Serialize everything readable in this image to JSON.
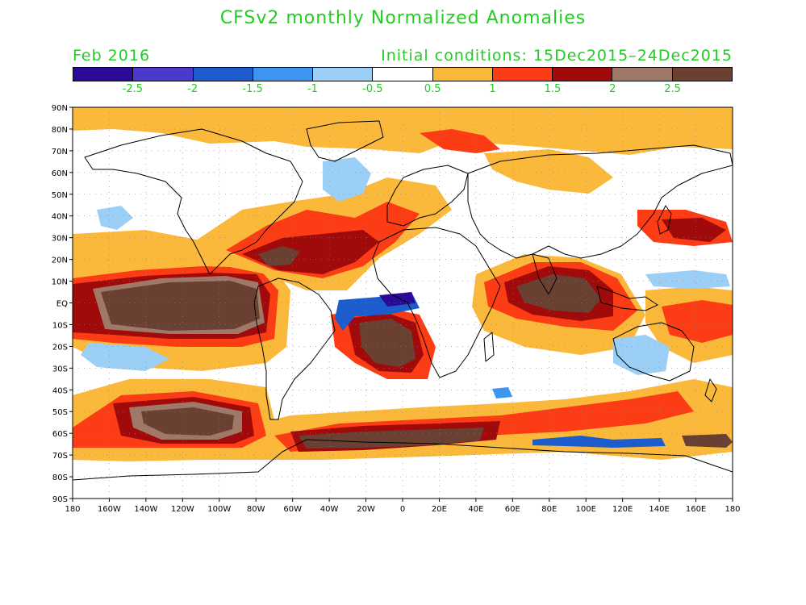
{
  "title": "CFSv2 monthly Normalized Anomalies",
  "valid_month": "Feb 2016",
  "initial_conditions": "Initial conditions: 15Dec2015–24Dec2015",
  "colorbar": {
    "colors": [
      "#2a0a96",
      "#4a3acc",
      "#1c5ccc",
      "#3c96f0",
      "#9ccff5",
      "#ffffff",
      "#fbb93c",
      "#fb3c14",
      "#a00a0a",
      "#a07868",
      "#6a4032"
    ],
    "labels": [
      "-2.5",
      "-2",
      "-1.5",
      "-1",
      "-0.5",
      "0.5",
      "1",
      "1.5",
      "2",
      "2.5"
    ]
  },
  "axes": {
    "lat_labels": [
      "90N",
      "80N",
      "70N",
      "60N",
      "50N",
      "40N",
      "30N",
      "20N",
      "10N",
      "EQ",
      "10S",
      "20S",
      "30S",
      "40S",
      "50S",
      "60S",
      "70S",
      "80S",
      "90S"
    ],
    "lon_labels": [
      "180",
      "160W",
      "140W",
      "120W",
      "100W",
      "80W",
      "60W",
      "40W",
      "20W",
      "0",
      "20E",
      "40E",
      "60E",
      "80E",
      "100E",
      "120E",
      "140E",
      "160E",
      "180"
    ]
  },
  "colors": {
    "text": "#22cc22",
    "coast": "#000000",
    "grid": "#888888"
  }
}
